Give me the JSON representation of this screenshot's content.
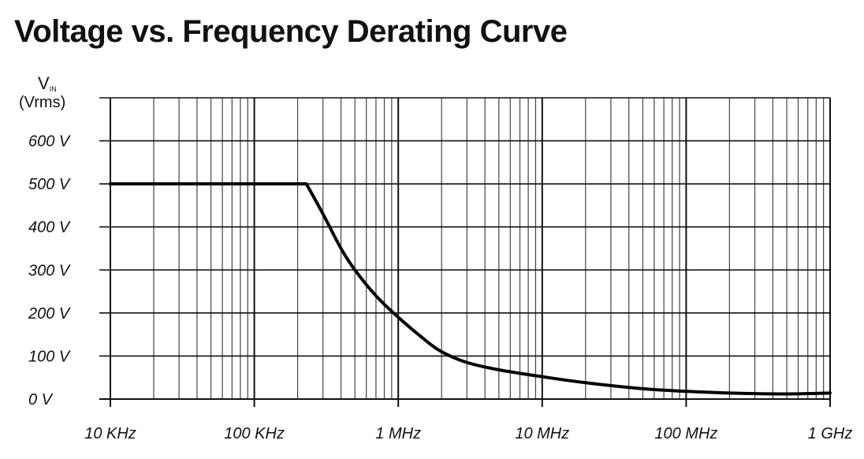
{
  "title": "Voltage vs. Frequency Derating Curve",
  "chart_data": {
    "type": "line",
    "title": "Voltage vs. Frequency Derating Curve",
    "ylabel_main": "V",
    "ylabel_sub": "IN",
    "ylabel_unit": "(Vrms)",
    "xlabel": "",
    "x_scale": "log",
    "xlim_hz": [
      10000,
      1000000000
    ],
    "ylim": [
      0,
      700
    ],
    "grid": true,
    "x_ticks": [
      {
        "value": 10000,
        "label": "10 KHz"
      },
      {
        "value": 100000,
        "label": "100 KHz"
      },
      {
        "value": 1000000,
        "label": "1 MHz"
      },
      {
        "value": 10000000,
        "label": "10 MHz"
      },
      {
        "value": 100000000,
        "label": "100 MHz"
      },
      {
        "value": 1000000000,
        "label": "1 GHz"
      }
    ],
    "y_ticks": [
      {
        "value": 0,
        "label": "0 V"
      },
      {
        "value": 100,
        "label": "100 V"
      },
      {
        "value": 200,
        "label": "200 V"
      },
      {
        "value": 300,
        "label": "300 V"
      },
      {
        "value": 400,
        "label": "400 V"
      },
      {
        "value": 500,
        "label": "500 V"
      },
      {
        "value": 600,
        "label": "600 V"
      }
    ],
    "series": [
      {
        "x": [
          10000,
          50000,
          100000,
          200000,
          230000,
          300000,
          400000,
          500000,
          700000,
          1000000,
          1500000,
          2000000,
          3000000,
          5000000,
          10000000,
          20000000,
          50000000,
          100000000,
          200000000,
          500000000,
          1000000000
        ],
        "y": [
          500,
          500,
          500,
          500,
          500,
          430,
          350,
          300,
          240,
          190,
          140,
          110,
          85,
          68,
          52,
          38,
          24,
          18,
          14,
          12,
          14
        ]
      }
    ]
  }
}
